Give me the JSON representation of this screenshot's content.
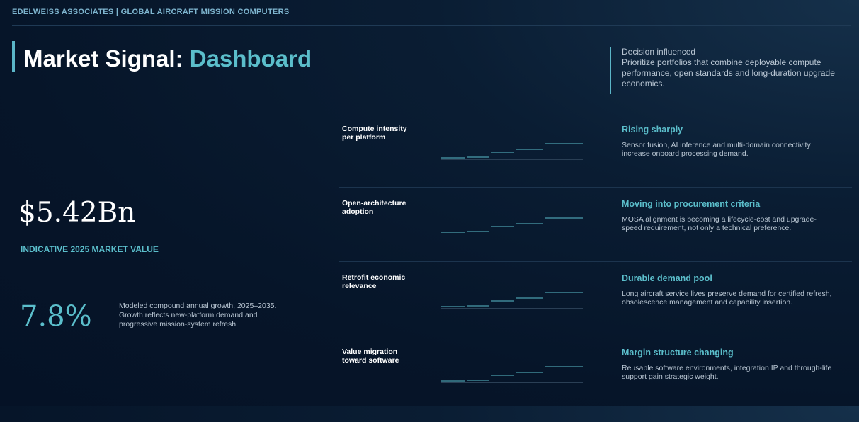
{
  "header": {
    "topbar": "EDELWEISS ASSOCIATES | GLOBAL AIRCRAFT MISSION COMPUTERS",
    "title_main": "Market Signal: ",
    "title_accent": "Dashboard"
  },
  "decision": {
    "label": "Decision influenced",
    "text": "Prioritize portfolios that combine deployable compute performance, open standards and long-duration upgrade economics."
  },
  "market": {
    "value": "$5.42Bn",
    "label": "INDICATIVE 2025 MARKET VALUE",
    "growth_value": "7.8%",
    "growth_note": "Modeled compound annual growth, 2025–2035. Growth reflects new-platform demand and progressive mission-system refresh."
  },
  "colors": {
    "accent": "#5bbecb",
    "background": "#061529",
    "text_muted": "#b9c6d3"
  },
  "signals": [
    {
      "label": "Compute intensity per platform",
      "title": "Rising sharply",
      "text": "Sensor fusion, AI inference and multi-domain connectivity increase onboard processing demand."
    },
    {
      "label": "Open-architecture adoption",
      "title": "Moving into procurement criteria",
      "text": "MOSA alignment is becoming a lifecycle-cost and upgrade-speed requirement, not only a technical preference."
    },
    {
      "label": "Retrofit economic relevance",
      "title": "Durable demand pool",
      "text": "Long aircraft service lives preserve demand for certified refresh, obsolescence management and capability insertion."
    },
    {
      "label": "Value migration toward software",
      "title": "Margin structure changing",
      "text": "Reusable software environments, integration IP and through-life support gain strategic weight."
    }
  ]
}
